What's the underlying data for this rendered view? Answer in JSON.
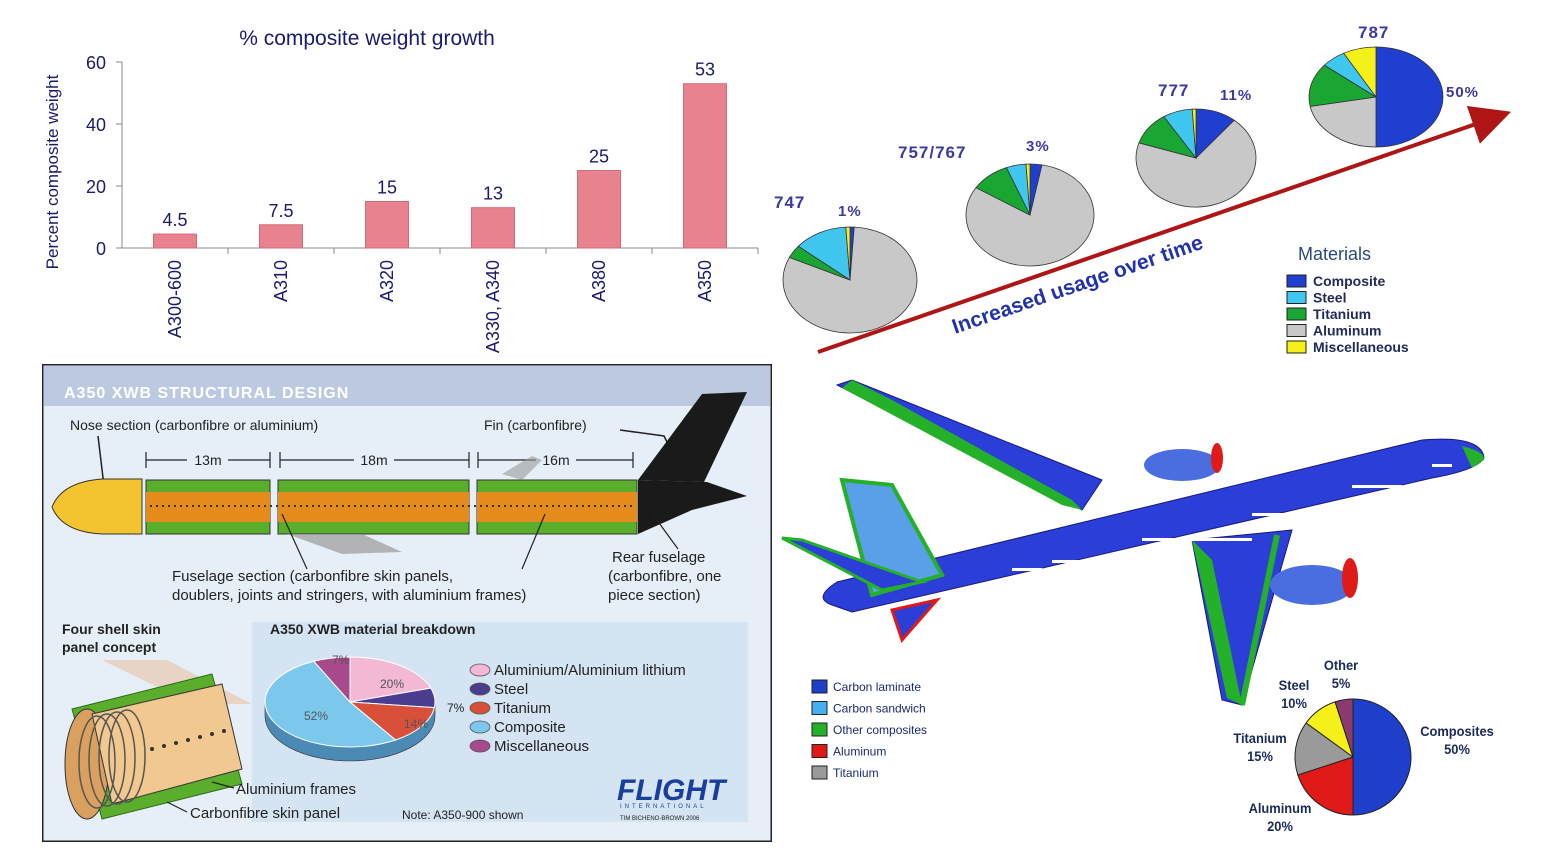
{
  "bar_chart": {
    "type": "bar",
    "title": "% composite weight  growth",
    "ylabel": "Percent composite weight",
    "xlabel": "",
    "categories": [
      "A300-600",
      "A310",
      "A320",
      "A330, A340",
      "A380",
      "A350"
    ],
    "values": [
      4.5,
      7.5,
      15,
      13,
      25,
      53
    ],
    "value_labels": [
      "4.5",
      "7.5",
      "15",
      "13",
      "25",
      "53"
    ],
    "yticks": [
      0,
      20,
      40,
      60
    ],
    "ytick_labels": [
      "0",
      "20",
      "40",
      "60"
    ],
    "ylim": [
      0,
      60
    ],
    "bar_color": "#e8828e",
    "grid": false
  },
  "pie_timeline": {
    "arrow_label": "Increased usage over time",
    "legend_title": "Materials",
    "materials": [
      {
        "name": "Composite",
        "color": "#1f3fd1"
      },
      {
        "name": "Steel",
        "color": "#3fc7f0"
      },
      {
        "name": "Titanium",
        "color": "#1aa632"
      },
      {
        "name": "Aluminum",
        "color": "#c8c8c8"
      },
      {
        "name": "Miscellaneous",
        "color": "#f5ef1a"
      }
    ],
    "aircraft": [
      {
        "model": "747",
        "composite_label": "1%",
        "composite": 1,
        "steel": 13,
        "titanium": 4,
        "aluminum": 81,
        "misc": 1
      },
      {
        "model": "757/767",
        "composite_label": "3%",
        "composite": 3,
        "steel": 5,
        "titanium": 10,
        "aluminum": 81,
        "misc": 1
      },
      {
        "model": "777",
        "composite_label": "11%",
        "composite": 11,
        "steel": 8,
        "titanium": 11,
        "aluminum": 69,
        "misc": 1
      },
      {
        "model": "787",
        "composite_label": "50%",
        "composite": 50,
        "steel": 6,
        "titanium": 14,
        "aluminum": 22,
        "misc": 8
      }
    ]
  },
  "a350": {
    "header": "A350 XWB STRUCTURAL DESIGN",
    "nose_label": "Nose section (carbonfibre or aluminium)",
    "fin_label": "Fin (carbonfibre)",
    "dim1": "13m",
    "dim2": "18m",
    "dim3": "16m",
    "fuselage_label_1": "Fuselage section (carbonfibre skin panels,",
    "fuselage_label_2": "doublers, joints and stringers, with aluminium frames)",
    "rear_label_1": "Rear fuselage",
    "rear_label_2": "(carbonfibre, one",
    "rear_label_3": "piece section)",
    "shell_label_1": "Four shell skin",
    "shell_label_2": "panel concept",
    "breakdown_title": "A350 XWB material breakdown",
    "pie": [
      {
        "name": "Aluminium/Aluminium lithium",
        "value": 20,
        "label": "20%",
        "color": "#f2b8d4"
      },
      {
        "name": "Steel",
        "value": 7,
        "label": "7%",
        "color": "#4a3d8f"
      },
      {
        "name": "Titanium",
        "value": 14,
        "label": "14%",
        "color": "#d8503a"
      },
      {
        "name": "Composite",
        "value": 52,
        "label": "52%",
        "color": "#7cc8ec"
      },
      {
        "name": "Miscellaneous",
        "value": 7,
        "label": "7%",
        "color": "#a64a8c"
      }
    ],
    "frames_label": "Aluminium frames",
    "skin_label": "Carbonfibre skin panel",
    "note": "Note: A350-900 shown",
    "logo_text": "FLIGHT",
    "logo_sub": "INTERNATIONAL",
    "credit": "TIM BICHENO-BROWN 2006",
    "colors": {
      "header_bg": "#bcc9e0",
      "panel_bg": "#dce8f4",
      "composite": "#e58b1c",
      "green": "#5aae2c",
      "nose": "#f4c430"
    }
  },
  "b787": {
    "legend": [
      {
        "name": "Carbon laminate",
        "color": "#1d3fc9"
      },
      {
        "name": "Carbon sandwich",
        "color": "#45b0f0"
      },
      {
        "name": "Other composites",
        "color": "#25b02a"
      },
      {
        "name": "Aluminum",
        "color": "#e01919"
      },
      {
        "name": "Titanium",
        "color": "#9a9a9a"
      }
    ],
    "pie": [
      {
        "name": "Composites",
        "value": 50,
        "label_name": "Composites",
        "label_value": "50%",
        "color": "#1d3fc9"
      },
      {
        "name": "Aluminum",
        "value": 20,
        "label_name": "Aluminum",
        "label_value": "20%",
        "color": "#e01919"
      },
      {
        "name": "Titanium",
        "value": 15,
        "label_name": "Titanium",
        "label_value": "15%",
        "color": "#9a9a9a"
      },
      {
        "name": "Steel",
        "value": 10,
        "label_name": "Steel",
        "label_value": "10%",
        "color": "#f5ef1a"
      },
      {
        "name": "Other",
        "value": 5,
        "label_name": "Other",
        "label_value": "5%",
        "color": "#8b3a6e"
      }
    ]
  }
}
